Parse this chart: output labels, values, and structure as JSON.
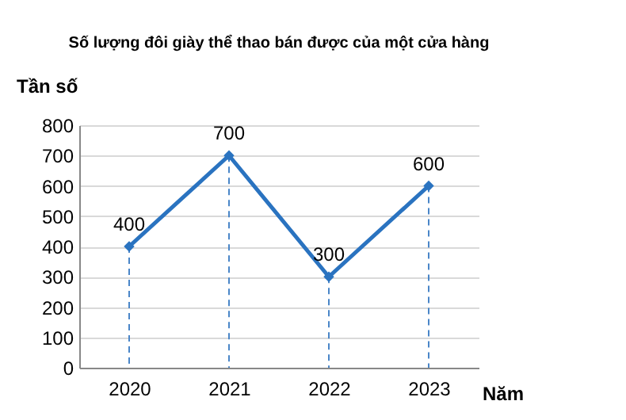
{
  "chart_data": {
    "type": "line",
    "title": "Số lượng đôi giày thể thao bán được của một cửa hàng",
    "xlabel": "Năm",
    "ylabel": "Tần số",
    "categories": [
      "2020",
      "2021",
      "2022",
      "2023"
    ],
    "series": [
      {
        "color": "#2a73c0",
        "values": [
          400,
          700,
          300,
          600
        ]
      }
    ],
    "ylim": [
      0,
      800
    ],
    "yticks": [
      0,
      100,
      200,
      300,
      400,
      500,
      600,
      700,
      800
    ],
    "grid": true,
    "marker": "diamond",
    "data_labels": true
  }
}
